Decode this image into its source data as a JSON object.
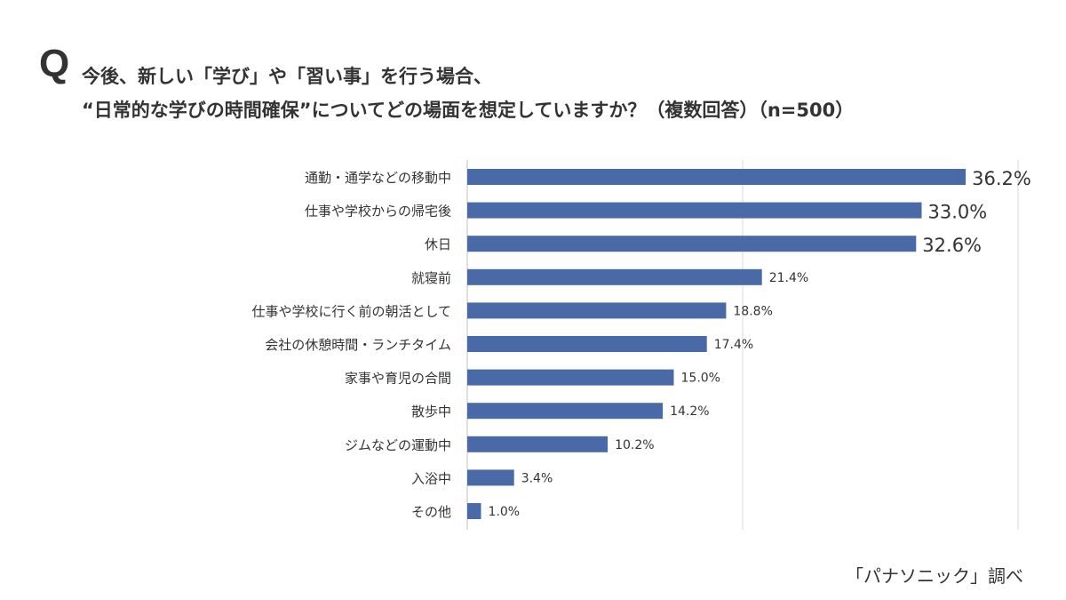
{
  "header": {
    "q_mark": "Q",
    "title_line1": "今後、新しい「学び」や「習い事」を行う場合、",
    "title_line2": "“日常的な学びの時間確保”についてどの場面を想定していますか？（複数回答）（n=500）"
  },
  "source": "「パナソニック」調べ",
  "colors": {
    "bar": "#4a6aa7",
    "grid": "#d9d9d9",
    "axis": "#bfbfbf",
    "text": "#333333"
  },
  "chart_data": {
    "type": "bar",
    "orientation": "horizontal",
    "categories": [
      "通勤・通学などの移動中",
      "仕事や学校からの帰宅後",
      "休日",
      "就寝前",
      "仕事や学校に行く前の朝活として",
      "会社の休憩時間・ランチタイム",
      "家事や育児の合間",
      "散歩中",
      "ジムなどの運動中",
      "入浴中",
      "その他"
    ],
    "values": [
      36.2,
      33.0,
      32.6,
      21.4,
      18.8,
      17.4,
      15.0,
      14.2,
      10.2,
      3.4,
      1.0
    ],
    "value_labels": [
      "36.2%",
      "33.0%",
      "32.6%",
      "21.4%",
      "18.8%",
      "17.4%",
      "15.0%",
      "14.2%",
      "10.2%",
      "3.4%",
      "1.0%"
    ],
    "highlight_top": 3,
    "xlim": [
      0,
      40
    ],
    "grid": true,
    "gridlines_at": [
      0,
      20,
      40
    ],
    "legend": "none"
  }
}
